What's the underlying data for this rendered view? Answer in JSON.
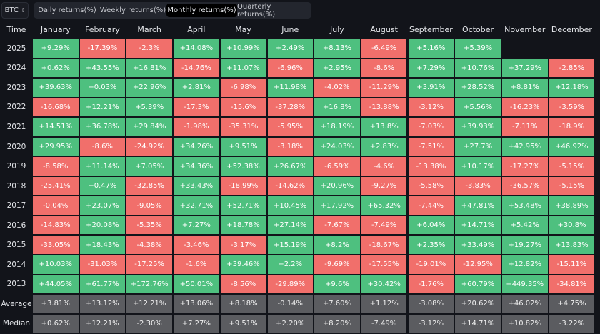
{
  "asset_selector": {
    "value": "BTC",
    "icon": "chevron-up-down-icon"
  },
  "tabs": [
    {
      "label": "Daily returns(%)",
      "active": false
    },
    {
      "label": "Weekly returns(%)",
      "active": false
    },
    {
      "label": "Monthly returns(%)",
      "active": true
    },
    {
      "label": "Quarterly returns(%)",
      "active": false
    }
  ],
  "colors": {
    "positive": "#4ec07f",
    "negative": "#f16f6b",
    "summary": "#5b5c60",
    "background": "#12141a"
  },
  "table": {
    "time_header": "Time",
    "months": [
      "January",
      "February",
      "March",
      "April",
      "May",
      "June",
      "July",
      "August",
      "September",
      "October",
      "November",
      "December"
    ],
    "rows": [
      {
        "label": "2025",
        "values": [
          "+9.29%",
          "-17.39%",
          "-2.3%",
          "+14.08%",
          "+10.99%",
          "+2.49%",
          "+8.13%",
          "-6.49%",
          "+5.16%",
          "+5.39%",
          "",
          ""
        ]
      },
      {
        "label": "2024",
        "values": [
          "+0.62%",
          "+43.55%",
          "+16.81%",
          "-14.76%",
          "+11.07%",
          "-6.96%",
          "+2.95%",
          "-8.6%",
          "+7.29%",
          "+10.76%",
          "+37.29%",
          "-2.85%"
        ]
      },
      {
        "label": "2023",
        "values": [
          "+39.63%",
          "+0.03%",
          "+22.96%",
          "+2.81%",
          "-6.98%",
          "+11.98%",
          "-4.02%",
          "-11.29%",
          "+3.91%",
          "+28.52%",
          "+8.81%",
          "+12.18%"
        ]
      },
      {
        "label": "2022",
        "values": [
          "-16.68%",
          "+12.21%",
          "+5.39%",
          "-17.3%",
          "-15.6%",
          "-37.28%",
          "+16.8%",
          "-13.88%",
          "-3.12%",
          "+5.56%",
          "-16.23%",
          "-3.59%"
        ]
      },
      {
        "label": "2021",
        "values": [
          "+14.51%",
          "+36.78%",
          "+29.84%",
          "-1.98%",
          "-35.31%",
          "-5.95%",
          "+18.19%",
          "+13.8%",
          "-7.03%",
          "+39.93%",
          "-7.11%",
          "-18.9%"
        ]
      },
      {
        "label": "2020",
        "values": [
          "+29.95%",
          "-8.6%",
          "-24.92%",
          "+34.26%",
          "+9.51%",
          "-3.18%",
          "+24.03%",
          "+2.83%",
          "-7.51%",
          "+27.7%",
          "+42.95%",
          "+46.92%"
        ]
      },
      {
        "label": "2019",
        "values": [
          "-8.58%",
          "+11.14%",
          "+7.05%",
          "+34.36%",
          "+52.38%",
          "+26.67%",
          "-6.59%",
          "-4.6%",
          "-13.38%",
          "+10.17%",
          "-17.27%",
          "-5.15%"
        ]
      },
      {
        "label": "2018",
        "values": [
          "-25.41%",
          "+0.47%",
          "-32.85%",
          "+33.43%",
          "-18.99%",
          "-14.62%",
          "+20.96%",
          "-9.27%",
          "-5.58%",
          "-3.83%",
          "-36.57%",
          "-5.15%"
        ]
      },
      {
        "label": "2017",
        "values": [
          "-0.04%",
          "+23.07%",
          "-9.05%",
          "+32.71%",
          "+52.71%",
          "+10.45%",
          "+17.92%",
          "+65.32%",
          "-7.44%",
          "+47.81%",
          "+53.48%",
          "+38.89%"
        ]
      },
      {
        "label": "2016",
        "values": [
          "-14.83%",
          "+20.08%",
          "-5.35%",
          "+7.27%",
          "+18.78%",
          "+27.14%",
          "-7.67%",
          "-7.49%",
          "+6.04%",
          "+14.71%",
          "+5.42%",
          "+30.8%"
        ]
      },
      {
        "label": "2015",
        "values": [
          "-33.05%",
          "+18.43%",
          "-4.38%",
          "-3.46%",
          "-3.17%",
          "+15.19%",
          "+8.2%",
          "-18.67%",
          "+2.35%",
          "+33.49%",
          "+19.27%",
          "+13.83%"
        ]
      },
      {
        "label": "2014",
        "values": [
          "+10.03%",
          "-31.03%",
          "-17.25%",
          "-1.6%",
          "+39.46%",
          "+2.2%",
          "-9.69%",
          "-17.55%",
          "-19.01%",
          "-12.95%",
          "+12.82%",
          "-15.11%"
        ]
      },
      {
        "label": "2013",
        "values": [
          "+44.05%",
          "+61.77%",
          "+172.76%",
          "+50.01%",
          "-8.56%",
          "-29.89%",
          "+9.6%",
          "+30.42%",
          "-1.76%",
          "+60.79%",
          "+449.35%",
          "-34.81%"
        ]
      }
    ],
    "summary": [
      {
        "label": "Average",
        "values": [
          "+3.81%",
          "+13.12%",
          "+12.21%",
          "+13.06%",
          "+8.18%",
          "-0.14%",
          "+7.60%",
          "+1.12%",
          "-3.08%",
          "+20.62%",
          "+46.02%",
          "+4.75%"
        ]
      },
      {
        "label": "Median",
        "values": [
          "+0.62%",
          "+12.21%",
          "-2.30%",
          "+7.27%",
          "+9.51%",
          "+2.20%",
          "+8.20%",
          "-7.49%",
          "-3.12%",
          "+14.71%",
          "+10.82%",
          "-3.22%"
        ]
      }
    ]
  }
}
